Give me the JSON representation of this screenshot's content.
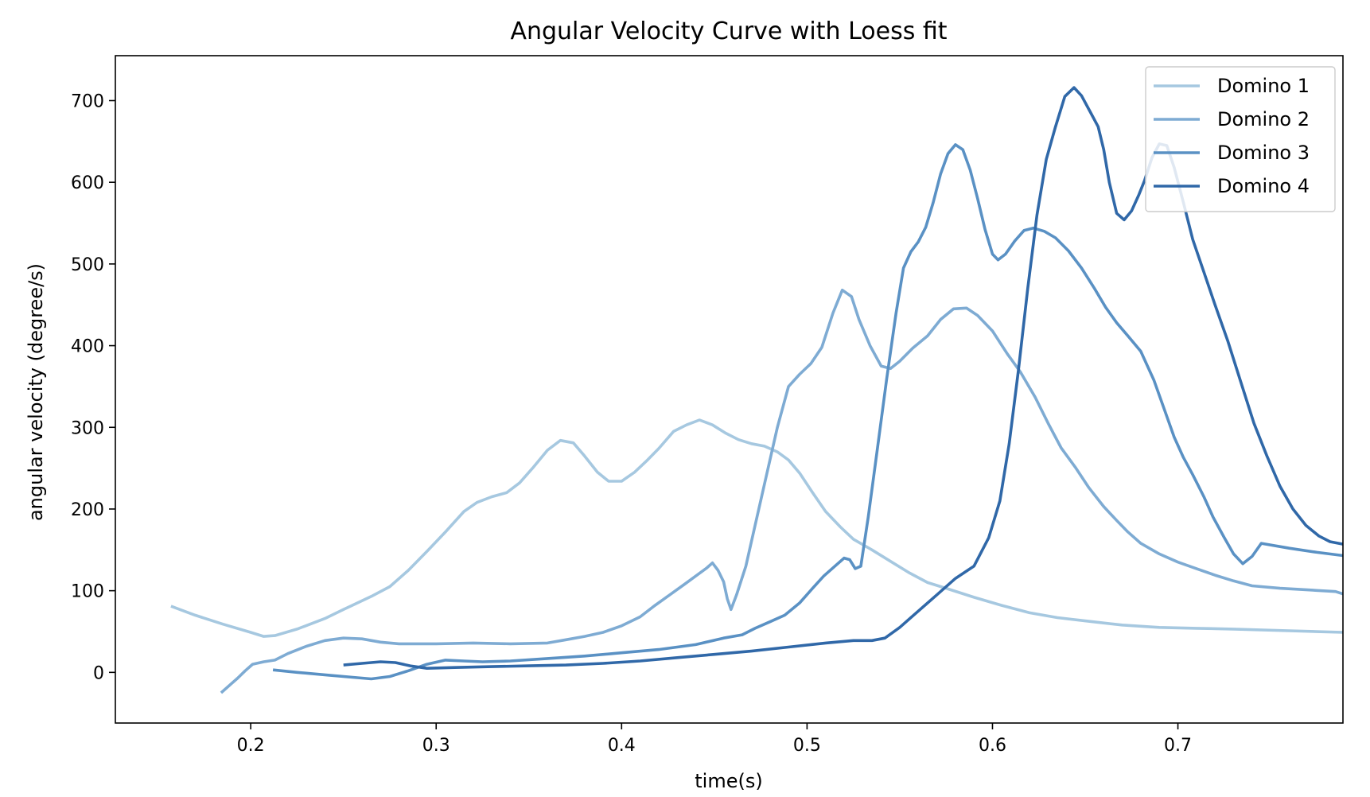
{
  "chart_data": {
    "type": "line",
    "title": "Angular Velocity Curve with Loess fit",
    "xlabel": "time(s)",
    "ylabel": "angular velocity (degree/s)",
    "xlim": [
      0.127,
      0.789
    ],
    "ylim": [
      -62,
      755
    ],
    "x_ticks": [
      0.2,
      0.3,
      0.4,
      0.5,
      0.6,
      0.7
    ],
    "x_tick_labels": [
      "0.2",
      "0.3",
      "0.4",
      "0.5",
      "0.6",
      "0.7"
    ],
    "y_ticks": [
      0,
      100,
      200,
      300,
      400,
      500,
      600,
      700
    ],
    "y_tick_labels": [
      "0",
      "100",
      "200",
      "300",
      "400",
      "500",
      "600",
      "700"
    ],
    "grid": false,
    "legend_position": "top-right",
    "series": [
      {
        "name": "Domino 1",
        "color": "#a6c8e0",
        "points": [
          [
            0.157,
            81
          ],
          [
            0.17,
            70
          ],
          [
            0.185,
            59
          ],
          [
            0.2,
            49
          ],
          [
            0.207,
            44
          ],
          [
            0.213,
            45
          ],
          [
            0.225,
            53
          ],
          [
            0.24,
            66
          ],
          [
            0.25,
            77
          ],
          [
            0.265,
            93
          ],
          [
            0.275,
            105
          ],
          [
            0.285,
            125
          ],
          [
            0.295,
            148
          ],
          [
            0.305,
            172
          ],
          [
            0.315,
            197
          ],
          [
            0.322,
            208
          ],
          [
            0.33,
            215
          ],
          [
            0.338,
            220
          ],
          [
            0.345,
            232
          ],
          [
            0.352,
            250
          ],
          [
            0.36,
            272
          ],
          [
            0.367,
            284
          ],
          [
            0.374,
            281
          ],
          [
            0.38,
            265
          ],
          [
            0.387,
            245
          ],
          [
            0.393,
            234
          ],
          [
            0.4,
            234
          ],
          [
            0.407,
            245
          ],
          [
            0.414,
            260
          ],
          [
            0.42,
            274
          ],
          [
            0.428,
            295
          ],
          [
            0.435,
            303
          ],
          [
            0.442,
            309
          ],
          [
            0.449,
            303
          ],
          [
            0.456,
            293
          ],
          [
            0.463,
            285
          ],
          [
            0.47,
            280
          ],
          [
            0.477,
            277
          ],
          [
            0.484,
            270
          ],
          [
            0.49,
            260
          ],
          [
            0.496,
            244
          ],
          [
            0.503,
            220
          ],
          [
            0.51,
            197
          ],
          [
            0.518,
            178
          ],
          [
            0.525,
            163
          ],
          [
            0.535,
            150
          ],
          [
            0.545,
            136
          ],
          [
            0.555,
            122
          ],
          [
            0.565,
            110
          ],
          [
            0.575,
            103
          ],
          [
            0.59,
            92
          ],
          [
            0.605,
            82
          ],
          [
            0.62,
            73
          ],
          [
            0.635,
            67
          ],
          [
            0.65,
            63
          ],
          [
            0.67,
            58
          ],
          [
            0.69,
            55
          ],
          [
            0.71,
            54
          ],
          [
            0.73,
            53
          ],
          [
            0.76,
            51
          ],
          [
            0.789,
            49
          ]
        ]
      },
      {
        "name": "Domino 2",
        "color": "#7eabd3",
        "points": [
          [
            0.184,
            -25
          ],
          [
            0.189,
            -15
          ],
          [
            0.193,
            -7
          ],
          [
            0.197,
            2
          ],
          [
            0.201,
            10
          ],
          [
            0.207,
            13
          ],
          [
            0.213,
            15
          ],
          [
            0.22,
            23
          ],
          [
            0.23,
            32
          ],
          [
            0.24,
            39
          ],
          [
            0.25,
            42
          ],
          [
            0.26,
            41
          ],
          [
            0.27,
            37
          ],
          [
            0.28,
            35
          ],
          [
            0.3,
            35
          ],
          [
            0.32,
            36
          ],
          [
            0.34,
            35
          ],
          [
            0.36,
            36
          ],
          [
            0.37,
            40
          ],
          [
            0.38,
            44
          ],
          [
            0.39,
            49
          ],
          [
            0.4,
            57
          ],
          [
            0.41,
            68
          ],
          [
            0.418,
            82
          ],
          [
            0.426,
            95
          ],
          [
            0.434,
            108
          ],
          [
            0.44,
            118
          ],
          [
            0.446,
            128
          ],
          [
            0.449,
            134
          ],
          [
            0.452,
            125
          ],
          [
            0.455,
            111
          ],
          [
            0.457,
            90
          ],
          [
            0.459,
            77
          ],
          [
            0.462,
            95
          ],
          [
            0.467,
            130
          ],
          [
            0.472,
            180
          ],
          [
            0.478,
            240
          ],
          [
            0.484,
            300
          ],
          [
            0.49,
            350
          ],
          [
            0.496,
            365
          ],
          [
            0.502,
            378
          ],
          [
            0.508,
            398
          ],
          [
            0.514,
            440
          ],
          [
            0.519,
            468
          ],
          [
            0.524,
            460
          ],
          [
            0.528,
            432
          ],
          [
            0.534,
            400
          ],
          [
            0.54,
            375
          ],
          [
            0.545,
            372
          ],
          [
            0.55,
            381
          ],
          [
            0.557,
            397
          ],
          [
            0.565,
            412
          ],
          [
            0.572,
            432
          ],
          [
            0.579,
            445
          ],
          [
            0.586,
            446
          ],
          [
            0.592,
            437
          ],
          [
            0.6,
            418
          ],
          [
            0.608,
            390
          ],
          [
            0.615,
            368
          ],
          [
            0.623,
            337
          ],
          [
            0.63,
            305
          ],
          [
            0.637,
            275
          ],
          [
            0.645,
            250
          ],
          [
            0.652,
            226
          ],
          [
            0.66,
            203
          ],
          [
            0.667,
            186
          ],
          [
            0.673,
            172
          ],
          [
            0.68,
            158
          ],
          [
            0.69,
            145
          ],
          [
            0.7,
            135
          ],
          [
            0.71,
            127
          ],
          [
            0.72,
            119
          ],
          [
            0.73,
            112
          ],
          [
            0.74,
            106
          ],
          [
            0.755,
            103
          ],
          [
            0.77,
            101
          ],
          [
            0.785,
            99
          ],
          [
            0.789,
            96
          ]
        ]
      },
      {
        "name": "Domino 3",
        "color": "#5a91c4",
        "points": [
          [
            0.212,
            3
          ],
          [
            0.225,
            0
          ],
          [
            0.24,
            -3
          ],
          [
            0.255,
            -6
          ],
          [
            0.265,
            -8
          ],
          [
            0.275,
            -5
          ],
          [
            0.285,
            2
          ],
          [
            0.295,
            10
          ],
          [
            0.305,
            15
          ],
          [
            0.315,
            14
          ],
          [
            0.325,
            13
          ],
          [
            0.34,
            14
          ],
          [
            0.36,
            17
          ],
          [
            0.38,
            20
          ],
          [
            0.4,
            24
          ],
          [
            0.42,
            28
          ],
          [
            0.44,
            34
          ],
          [
            0.455,
            42
          ],
          [
            0.465,
            46
          ],
          [
            0.472,
            54
          ],
          [
            0.48,
            62
          ],
          [
            0.488,
            70
          ],
          [
            0.496,
            85
          ],
          [
            0.503,
            103
          ],
          [
            0.509,
            118
          ],
          [
            0.515,
            130
          ],
          [
            0.52,
            140
          ],
          [
            0.523,
            138
          ],
          [
            0.526,
            127
          ],
          [
            0.529,
            130
          ],
          [
            0.533,
            190
          ],
          [
            0.538,
            275
          ],
          [
            0.543,
            360
          ],
          [
            0.548,
            440
          ],
          [
            0.552,
            495
          ],
          [
            0.556,
            515
          ],
          [
            0.56,
            527
          ],
          [
            0.564,
            545
          ],
          [
            0.568,
            575
          ],
          [
            0.572,
            610
          ],
          [
            0.576,
            635
          ],
          [
            0.58,
            646
          ],
          [
            0.584,
            640
          ],
          [
            0.588,
            615
          ],
          [
            0.592,
            580
          ],
          [
            0.596,
            542
          ],
          [
            0.6,
            512
          ],
          [
            0.603,
            505
          ],
          [
            0.607,
            512
          ],
          [
            0.612,
            528
          ],
          [
            0.617,
            541
          ],
          [
            0.622,
            544
          ],
          [
            0.628,
            540
          ],
          [
            0.634,
            532
          ],
          [
            0.641,
            516
          ],
          [
            0.648,
            495
          ],
          [
            0.655,
            470
          ],
          [
            0.661,
            447
          ],
          [
            0.667,
            428
          ],
          [
            0.673,
            412
          ],
          [
            0.68,
            393
          ],
          [
            0.687,
            358
          ],
          [
            0.693,
            320
          ],
          [
            0.698,
            288
          ],
          [
            0.703,
            263
          ],
          [
            0.708,
            242
          ],
          [
            0.714,
            215
          ],
          [
            0.719,
            190
          ],
          [
            0.725,
            165
          ],
          [
            0.73,
            145
          ],
          [
            0.735,
            133
          ],
          [
            0.74,
            142
          ],
          [
            0.745,
            158
          ],
          [
            0.76,
            152
          ],
          [
            0.775,
            147
          ],
          [
            0.789,
            143
          ]
        ]
      },
      {
        "name": "Domino 4",
        "color": "#3068a8",
        "points": [
          [
            0.25,
            9
          ],
          [
            0.26,
            11
          ],
          [
            0.27,
            13
          ],
          [
            0.278,
            12
          ],
          [
            0.286,
            8
          ],
          [
            0.295,
            5
          ],
          [
            0.31,
            6
          ],
          [
            0.33,
            7
          ],
          [
            0.35,
            8
          ],
          [
            0.37,
            9
          ],
          [
            0.39,
            11
          ],
          [
            0.41,
            14
          ],
          [
            0.43,
            18
          ],
          [
            0.45,
            22
          ],
          [
            0.47,
            26
          ],
          [
            0.49,
            31
          ],
          [
            0.51,
            36
          ],
          [
            0.525,
            39
          ],
          [
            0.535,
            39
          ],
          [
            0.542,
            42
          ],
          [
            0.55,
            55
          ],
          [
            0.56,
            75
          ],
          [
            0.57,
            95
          ],
          [
            0.58,
            115
          ],
          [
            0.59,
            130
          ],
          [
            0.598,
            165
          ],
          [
            0.604,
            210
          ],
          [
            0.609,
            280
          ],
          [
            0.614,
            370
          ],
          [
            0.619,
            470
          ],
          [
            0.624,
            560
          ],
          [
            0.629,
            628
          ],
          [
            0.634,
            668
          ],
          [
            0.639,
            705
          ],
          [
            0.644,
            716
          ],
          [
            0.648,
            706
          ],
          [
            0.653,
            685
          ],
          [
            0.657,
            668
          ],
          [
            0.66,
            640
          ],
          [
            0.663,
            600
          ],
          [
            0.667,
            562
          ],
          [
            0.671,
            554
          ],
          [
            0.675,
            565
          ],
          [
            0.679,
            585
          ],
          [
            0.682,
            602
          ],
          [
            0.686,
            630
          ],
          [
            0.69,
            647
          ],
          [
            0.694,
            645
          ],
          [
            0.698,
            618
          ],
          [
            0.703,
            575
          ],
          [
            0.708,
            530
          ],
          [
            0.714,
            490
          ],
          [
            0.72,
            450
          ],
          [
            0.727,
            405
          ],
          [
            0.734,
            355
          ],
          [
            0.741,
            305
          ],
          [
            0.748,
            265
          ],
          [
            0.755,
            228
          ],
          [
            0.762,
            200
          ],
          [
            0.769,
            180
          ],
          [
            0.776,
            167
          ],
          [
            0.782,
            160
          ],
          [
            0.789,
            157
          ]
        ]
      }
    ]
  }
}
